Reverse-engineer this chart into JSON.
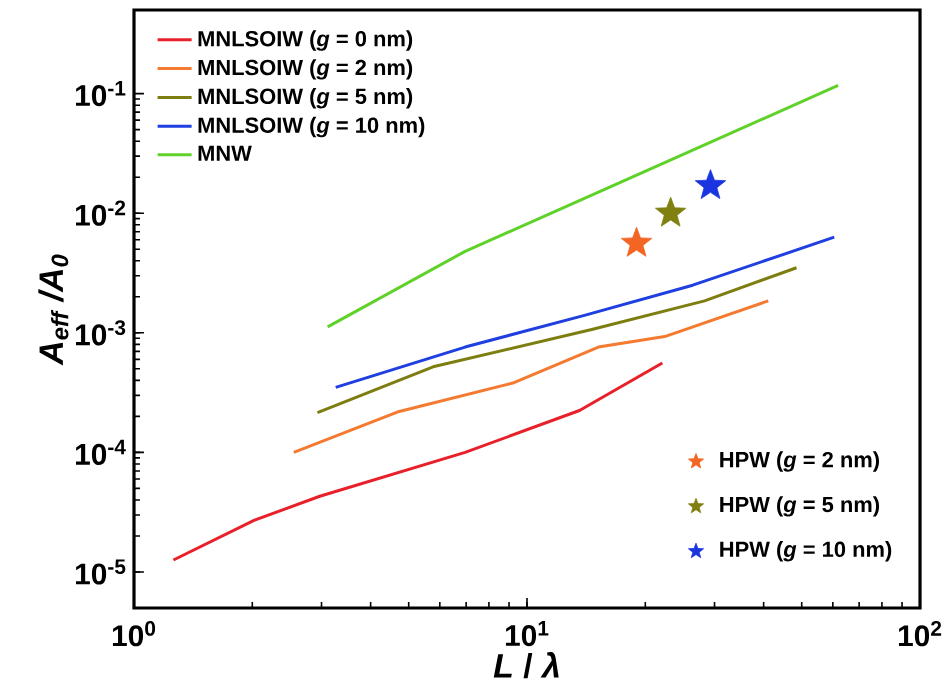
{
  "chart_data": {
    "type": "line",
    "xlabel": "*L* / *λ*",
    "ylabel": "A$_{eff}$ /A$_{0}$",
    "log": "xy",
    "legend": "top left",
    "xlim": [
      1,
      100
    ],
    "ylim": [
      5e-06,
      0.5
    ],
    "xticks": [
      {
        "value": 1,
        "label": "10$^{0}$"
      },
      {
        "value": 10,
        "label": "10$^{1}$"
      },
      {
        "value": 100,
        "label": "10$^{2}$"
      }
    ],
    "yticks": [
      {
        "value": 1e-05,
        "label": "10$^{-5}$"
      },
      {
        "value": 0.0001,
        "label": "10$^{-4}$"
      },
      {
        "value": 0.001,
        "label": "10$^{-3}$"
      },
      {
        "value": 0.01,
        "label": "10$^{-2}$"
      },
      {
        "value": 0.1,
        "label": "10$^{-1}$"
      }
    ],
    "series": [
      {
        "name": "MNLSOIW (*g* = 0 nm)",
        "color": "#e8202a",
        "x": [
          1.26,
          2.02,
          2.97,
          6.96,
          13.6,
          22.1
        ],
        "values": [
          1.26e-05,
          2.7e-05,
          4.3e-05,
          0.0001,
          0.000224,
          0.00056
        ]
      },
      {
        "name": "MNLSOIW (*g* = 2 nm)",
        "color": "#f47a30",
        "x": [
          2.55,
          4.73,
          9.2,
          15.2,
          22.4,
          41.1
        ],
        "values": [
          0.0001,
          0.00022,
          0.00038,
          0.00076,
          0.00093,
          0.00185
        ]
      },
      {
        "name": "MNLSOIW (*g* = 5 nm)",
        "color": "#7d7d10",
        "x": [
          2.93,
          5.77,
          14.7,
          28.3,
          48.5
        ],
        "values": [
          0.000215,
          0.00052,
          0.00107,
          0.00185,
          0.0035
        ]
      },
      {
        "name": "MNLSOIW (*g* = 10 nm)",
        "color": "#1f3fe0",
        "x": [
          3.26,
          6.96,
          14.0,
          26.4,
          60.5
        ],
        "values": [
          0.00035,
          0.00076,
          0.0014,
          0.0025,
          0.0063
        ]
      },
      {
        "name": "MNW",
        "color": "#5fd22a",
        "x": [
          3.11,
          6.96,
          15.2,
          61.9
        ],
        "values": [
          0.00112,
          0.0048,
          0.015,
          0.117
        ]
      },
      {
        "name": "HPW (*g* = 2 nm)",
        "type": "scatter",
        "marker": "star",
        "color": "#f26522",
        "x": [
          19.0
        ],
        "values": [
          0.0056
        ]
      },
      {
        "name": "HPW (*g* = 5 nm)",
        "type": "scatter",
        "marker": "star",
        "color": "#808010",
        "x": [
          23.2
        ],
        "values": [
          0.01
        ]
      },
      {
        "name": "HPW (*g* = 10 nm)",
        "type": "scatter",
        "marker": "star",
        "color": "#1a35e0",
        "x": [
          29.3
        ],
        "values": [
          0.017
        ]
      }
    ]
  }
}
